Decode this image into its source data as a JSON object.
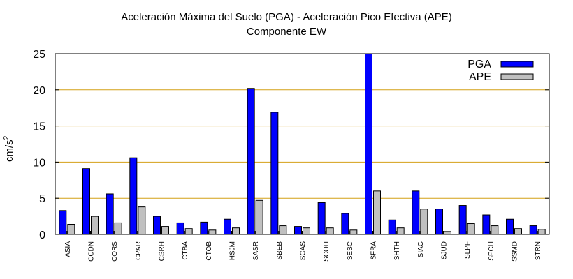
{
  "chart_data": {
    "type": "bar",
    "title": "Aceleración Máxima del Suelo (PGA) -  Aceleración Pico Efectiva (APE)",
    "subtitle": "Componente EW",
    "ylabel": "cm/s",
    "ylabel_exponent": "2",
    "xlabel": "",
    "ylim": [
      0,
      25
    ],
    "yticks": [
      0,
      5,
      10,
      15,
      20,
      25
    ],
    "grid": "horizontal",
    "legend_position": "top-right",
    "categories": [
      "ASIA",
      "CCDN",
      "CORS",
      "CPAR",
      "CSRH",
      "CTBA",
      "CTOB",
      "HSJM",
      "SASR",
      "SBEB",
      "SCAS",
      "SCOH",
      "SESC",
      "SFRA",
      "SHTH",
      "SIAC",
      "SJUD",
      "SLPF",
      "SPCH",
      "SSMD",
      "STRN"
    ],
    "series": [
      {
        "name": "PGA",
        "color": "#0000ff",
        "values": [
          3.3,
          9.1,
          5.6,
          10.6,
          2.5,
          1.6,
          1.7,
          2.1,
          20.2,
          16.9,
          1.1,
          4.4,
          2.9,
          25.0,
          2.0,
          6.0,
          3.5,
          4.0,
          2.7,
          2.1,
          1.2
        ]
      },
      {
        "name": "APE",
        "color": "#c0c0c0",
        "values": [
          1.4,
          2.5,
          1.6,
          3.8,
          1.1,
          0.8,
          0.6,
          0.9,
          4.7,
          1.2,
          0.9,
          0.9,
          0.6,
          6.0,
          0.9,
          3.5,
          0.4,
          1.5,
          1.2,
          0.8,
          0.7
        ]
      }
    ]
  }
}
